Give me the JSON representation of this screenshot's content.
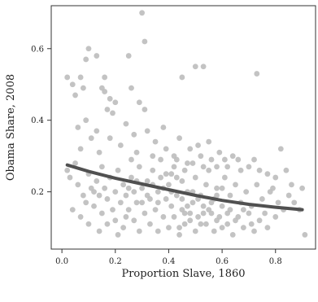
{
  "chart_data": {
    "type": "scatter",
    "title": "",
    "xlabel": "Proportion Slave, 1860",
    "ylabel": "Obama Share, 2008",
    "xlim": [
      -0.04,
      0.95
    ],
    "ylim": [
      0.04,
      0.72
    ],
    "x_ticks": [
      0.0,
      0.2,
      0.4,
      0.6,
      0.8
    ],
    "x_tick_labels": [
      "0.0",
      "0.2",
      "0.4",
      "0.6",
      "0.8"
    ],
    "y_ticks": [
      0.2,
      0.4,
      0.6
    ],
    "y_tick_labels": [
      "0.2",
      "0.4",
      "0.6"
    ],
    "grid": false,
    "legend": "none",
    "point_color": "#bdbdbd",
    "trend_color": "#505050",
    "series": [
      {
        "kind": "points",
        "points": [
          [
            0.02,
            0.52
          ],
          [
            0.04,
            0.5
          ],
          [
            0.05,
            0.47
          ],
          [
            0.07,
            0.52
          ],
          [
            0.08,
            0.49
          ],
          [
            0.09,
            0.57
          ],
          [
            0.1,
            0.6
          ],
          [
            0.13,
            0.58
          ],
          [
            0.15,
            0.49
          ],
          [
            0.16,
            0.52
          ],
          [
            0.16,
            0.48
          ],
          [
            0.17,
            0.43
          ],
          [
            0.18,
            0.46
          ],
          [
            0.19,
            0.42
          ],
          [
            0.2,
            0.45
          ],
          [
            0.25,
            0.58
          ],
          [
            0.26,
            0.49
          ],
          [
            0.29,
            0.45
          ],
          [
            0.3,
            0.7
          ],
          [
            0.31,
            0.43
          ],
          [
            0.31,
            0.62
          ],
          [
            0.32,
            0.37
          ],
          [
            0.45,
            0.52
          ],
          [
            0.5,
            0.55
          ],
          [
            0.53,
            0.55
          ],
          [
            0.73,
            0.53
          ],
          [
            0.06,
            0.38
          ],
          [
            0.07,
            0.32
          ],
          [
            0.09,
            0.4
          ],
          [
            0.11,
            0.35
          ],
          [
            0.13,
            0.37
          ],
          [
            0.14,
            0.31
          ],
          [
            0.18,
            0.35
          ],
          [
            0.22,
            0.33
          ],
          [
            0.24,
            0.39
          ],
          [
            0.27,
            0.36
          ],
          [
            0.35,
            0.34
          ],
          [
            0.38,
            0.38
          ],
          [
            0.42,
            0.3
          ],
          [
            0.44,
            0.35
          ],
          [
            0.48,
            0.32
          ],
          [
            0.52,
            0.3
          ],
          [
            0.55,
            0.34
          ],
          [
            0.58,
            0.27
          ],
          [
            0.61,
            0.29
          ],
          [
            0.66,
            0.29
          ],
          [
            0.72,
            0.29
          ],
          [
            0.8,
            0.24
          ],
          [
            0.82,
            0.32
          ],
          [
            0.86,
            0.22
          ],
          [
            0.9,
            0.21
          ],
          [
            0.91,
            0.08
          ],
          [
            0.02,
            0.26
          ],
          [
            0.03,
            0.24
          ],
          [
            0.05,
            0.28
          ],
          [
            0.06,
            0.22
          ],
          [
            0.08,
            0.19
          ],
          [
            0.09,
            0.17
          ],
          [
            0.1,
            0.25
          ],
          [
            0.11,
            0.21
          ],
          [
            0.12,
            0.16
          ],
          [
            0.13,
            0.23
          ],
          [
            0.14,
            0.19
          ],
          [
            0.15,
            0.27
          ],
          [
            0.15,
            0.14
          ],
          [
            0.16,
            0.21
          ],
          [
            0.17,
            0.18
          ],
          [
            0.18,
            0.24
          ],
          [
            0.19,
            0.15
          ],
          [
            0.2,
            0.2
          ],
          [
            0.2,
            0.12
          ],
          [
            0.21,
            0.26
          ],
          [
            0.22,
            0.17
          ],
          [
            0.23,
            0.22
          ],
          [
            0.23,
            0.1
          ],
          [
            0.24,
            0.19
          ],
          [
            0.25,
            0.15
          ],
          [
            0.26,
            0.24
          ],
          [
            0.27,
            0.12
          ],
          [
            0.27,
            0.2
          ],
          [
            0.28,
            0.17
          ],
          [
            0.29,
            0.27
          ],
          [
            0.29,
            0.09
          ],
          [
            0.3,
            0.21
          ],
          [
            0.31,
            0.14
          ],
          [
            0.32,
            0.23
          ],
          [
            0.33,
            0.11
          ],
          [
            0.33,
            0.18
          ],
          [
            0.34,
            0.26
          ],
          [
            0.35,
            0.15
          ],
          [
            0.36,
            0.2
          ],
          [
            0.36,
            0.09
          ],
          [
            0.37,
            0.24
          ],
          [
            0.38,
            0.13
          ],
          [
            0.39,
            0.18
          ],
          [
            0.4,
            0.22
          ],
          [
            0.4,
            0.1
          ],
          [
            0.41,
            0.16
          ],
          [
            0.42,
            0.27
          ],
          [
            0.42,
            0.13
          ],
          [
            0.43,
            0.19
          ],
          [
            0.44,
            0.08
          ],
          [
            0.45,
            0.23
          ],
          [
            0.45,
            0.15
          ],
          [
            0.46,
            0.11
          ],
          [
            0.47,
            0.2
          ],
          [
            0.47,
            0.28
          ],
          [
            0.48,
            0.14
          ],
          [
            0.49,
            0.17
          ],
          [
            0.5,
            0.24
          ],
          [
            0.5,
            0.09
          ],
          [
            0.51,
            0.13
          ],
          [
            0.52,
            0.19
          ],
          [
            0.53,
            0.16
          ],
          [
            0.54,
            0.22
          ],
          [
            0.54,
            0.11
          ],
          [
            0.55,
            0.26
          ],
          [
            0.56,
            0.14
          ],
          [
            0.57,
            0.18
          ],
          [
            0.57,
            0.09
          ],
          [
            0.58,
            0.21
          ],
          [
            0.59,
            0.13
          ],
          [
            0.6,
            0.16
          ],
          [
            0.61,
            0.24
          ],
          [
            0.62,
            0.11
          ],
          [
            0.63,
            0.19
          ],
          [
            0.63,
            0.15
          ],
          [
            0.64,
            0.08
          ],
          [
            0.65,
            0.22
          ],
          [
            0.66,
            0.13
          ],
          [
            0.67,
            0.17
          ],
          [
            0.68,
            0.1
          ],
          [
            0.69,
            0.2
          ],
          [
            0.7,
            0.14
          ],
          [
            0.71,
            0.16
          ],
          [
            0.72,
            0.09
          ],
          [
            0.73,
            0.22
          ],
          [
            0.74,
            0.12
          ],
          [
            0.75,
            0.18
          ],
          [
            0.76,
            0.14
          ],
          [
            0.77,
            0.1
          ],
          [
            0.78,
            0.2
          ],
          [
            0.8,
            0.13
          ],
          [
            0.81,
            0.17
          ],
          [
            0.83,
            0.15
          ],
          [
            0.85,
            0.19
          ],
          [
            0.04,
            0.15
          ],
          [
            0.07,
            0.13
          ],
          [
            0.1,
            0.11
          ],
          [
            0.12,
            0.2
          ],
          [
            0.14,
            0.09
          ],
          [
            0.17,
            0.11
          ],
          [
            0.21,
            0.08
          ],
          [
            0.24,
            0.13
          ],
          [
            0.26,
            0.29
          ],
          [
            0.28,
            0.31
          ],
          [
            0.34,
            0.3
          ],
          [
            0.37,
            0.29
          ],
          [
            0.39,
            0.32
          ],
          [
            0.41,
            0.25
          ],
          [
            0.43,
            0.29
          ],
          [
            0.46,
            0.26
          ],
          [
            0.49,
            0.28
          ],
          [
            0.51,
            0.33
          ],
          [
            0.53,
            0.27
          ],
          [
            0.56,
            0.29
          ],
          [
            0.59,
            0.31
          ],
          [
            0.62,
            0.27
          ],
          [
            0.64,
            0.3
          ],
          [
            0.67,
            0.26
          ],
          [
            0.7,
            0.27
          ],
          [
            0.74,
            0.26
          ],
          [
            0.77,
            0.25
          ],
          [
            0.79,
            0.21
          ],
          [
            0.84,
            0.26
          ],
          [
            0.87,
            0.17
          ],
          [
            0.89,
            0.15
          ],
          [
            0.44,
            0.1
          ],
          [
            0.46,
            0.14
          ],
          [
            0.48,
            0.12
          ],
          [
            0.52,
            0.11
          ],
          [
            0.55,
            0.15
          ],
          [
            0.58,
            0.12
          ],
          [
            0.6,
            0.1
          ],
          [
            0.62,
            0.14
          ],
          [
            0.65,
            0.12
          ],
          [
            0.68,
            0.15
          ],
          [
            0.71,
            0.11
          ],
          [
            0.45,
            0.18
          ],
          [
            0.47,
            0.16
          ],
          [
            0.49,
            0.2
          ],
          [
            0.51,
            0.18
          ],
          [
            0.53,
            0.14
          ],
          [
            0.56,
            0.17
          ],
          [
            0.58,
            0.19
          ],
          [
            0.6,
            0.21
          ],
          [
            0.25,
            0.21
          ],
          [
            0.28,
            0.23
          ],
          [
            0.3,
            0.17
          ],
          [
            0.32,
            0.19
          ],
          [
            0.34,
            0.22
          ],
          [
            0.36,
            0.17
          ],
          [
            0.38,
            0.21
          ],
          [
            0.39,
            0.25
          ],
          [
            0.41,
            0.2
          ],
          [
            0.43,
            0.24
          ]
        ]
      },
      {
        "kind": "trend",
        "x": [
          0.02,
          0.1,
          0.2,
          0.3,
          0.4,
          0.5,
          0.6,
          0.7,
          0.8,
          0.9
        ],
        "y": [
          0.275,
          0.257,
          0.238,
          0.222,
          0.206,
          0.19,
          0.176,
          0.165,
          0.157,
          0.15
        ]
      }
    ]
  }
}
